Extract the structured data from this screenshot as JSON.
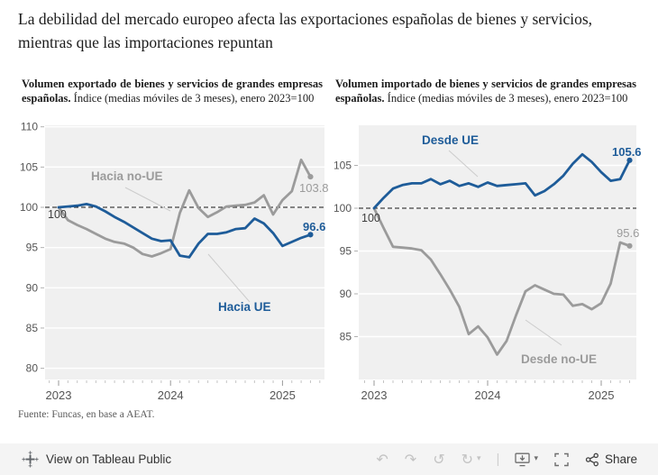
{
  "title": "La debilidad del mercado europeo afecta las exportaciones españolas de bienes y servicios, mientras que las importaciones repuntan",
  "source": "Fuente: Funcas, en base a AEAT.",
  "panels": [
    {
      "heading_bold": "Volumen exportado de bienes y servicios de grandes empresas españolas.",
      "heading_rest": " Índice (medias móviles de 3 meses), enero 2023=100"
    },
    {
      "heading_bold": "Volumen importado de bienes y servicios de grandes empresas españolas.",
      "heading_rest": " Índice (medias móviles de 3 meses), enero 2023=100"
    }
  ],
  "colors": {
    "blue": "#1e5c99",
    "gray": "#9b9b9b",
    "plot_bg": "#f0f0f0",
    "grid": "#ffffff",
    "ref_line": "#111111",
    "leader": "#cccccc",
    "axis_text": "#555555"
  },
  "chart_data": [
    {
      "type": "line",
      "title": "Volumen exportado de bienes y servicios de grandes empresas españolas",
      "subtitle": "Índice (medias móviles de 3 meses), enero 2023=100",
      "x": [
        "2023-01",
        "2023-02",
        "2023-03",
        "2023-04",
        "2023-05",
        "2023-06",
        "2023-07",
        "2023-08",
        "2023-09",
        "2023-10",
        "2023-11",
        "2023-12",
        "2024-01",
        "2024-02",
        "2024-03",
        "2024-04",
        "2024-05",
        "2024-06",
        "2024-07",
        "2024-08",
        "2024-09",
        "2024-10",
        "2024-11",
        "2024-12",
        "2025-01",
        "2025-02",
        "2025-03",
        "2025-04"
      ],
      "series": [
        {
          "name": "Hacia UE",
          "color": "#1e5c99",
          "end_label": "96.6",
          "values": [
            100,
            100.1,
            100.2,
            100.4,
            100.1,
            99.5,
            98.8,
            98.2,
            97.5,
            96.8,
            96.1,
            95.8,
            95.9,
            94.0,
            93.8,
            95.5,
            96.7,
            96.7,
            96.9,
            97.3,
            97.4,
            98.6,
            98.0,
            96.8,
            95.2,
            95.7,
            96.2,
            96.6
          ]
        },
        {
          "name": "Hacia no-UE",
          "color": "#9b9b9b",
          "end_label": "103.8",
          "values": [
            100,
            98.4,
            97.8,
            97.3,
            96.7,
            96.1,
            95.7,
            95.5,
            95.0,
            94.2,
            93.9,
            94.3,
            94.8,
            99.3,
            102.1,
            99.9,
            98.8,
            99.4,
            100.1,
            100.2,
            100.3,
            100.6,
            101.5,
            99.1,
            100.9,
            102.0,
            105.9,
            103.8
          ]
        }
      ],
      "start_label": "100",
      "refline": 100,
      "ylim": [
        80,
        110
      ],
      "yticks": [
        80,
        85,
        90,
        95,
        100,
        105,
        110
      ],
      "xticks": [
        "2023",
        "2024",
        "2025"
      ],
      "grid": true,
      "legend_position": "annotated-inline"
    },
    {
      "type": "line",
      "title": "Volumen importado de bienes y servicios de grandes empresas españolas",
      "subtitle": "Índice (medias móviles de 3 meses), enero 2023=100",
      "x": [
        "2023-01",
        "2023-02",
        "2023-03",
        "2023-04",
        "2023-05",
        "2023-06",
        "2023-07",
        "2023-08",
        "2023-09",
        "2023-10",
        "2023-11",
        "2023-12",
        "2024-01",
        "2024-02",
        "2024-03",
        "2024-04",
        "2024-05",
        "2024-06",
        "2024-07",
        "2024-08",
        "2024-09",
        "2024-10",
        "2024-11",
        "2024-12",
        "2025-01",
        "2025-02",
        "2025-03",
        "2025-04"
      ],
      "series": [
        {
          "name": "Desde UE",
          "color": "#1e5c99",
          "end_label": "105.6",
          "values": [
            100,
            101.2,
            102.3,
            102.7,
            102.9,
            102.9,
            103.4,
            102.8,
            103.2,
            102.6,
            102.9,
            102.5,
            103.0,
            102.6,
            102.7,
            102.8,
            102.9,
            101.5,
            102.0,
            102.8,
            103.8,
            105.2,
            106.3,
            105.4,
            104.2,
            103.2,
            103.4,
            105.6
          ]
        },
        {
          "name": "Desde no-UE",
          "color": "#9b9b9b",
          "end_label": "95.6",
          "values": [
            100,
            97.7,
            95.5,
            95.4,
            95.3,
            95.1,
            94.0,
            92.3,
            90.5,
            88.5,
            85.3,
            86.2,
            84.9,
            82.9,
            84.5,
            87.5,
            90.3,
            91.0,
            90.5,
            90.0,
            89.9,
            88.6,
            88.8,
            88.2,
            88.9,
            91.2,
            96.0,
            95.6
          ]
        }
      ],
      "start_label": "100",
      "refline": 100,
      "ylim": [
        80,
        110
      ],
      "yticks": [
        85,
        90,
        95,
        100,
        105
      ],
      "xticks": [
        "2023",
        "2024",
        "2025"
      ],
      "grid": true,
      "legend_position": "annotated-inline"
    }
  ],
  "toolbar": {
    "view_label": "View on Tableau Public",
    "share_label": "Share",
    "icons": {
      "undo": "↶",
      "redo": "↷",
      "revert": "↺",
      "refresh": "↻",
      "caret": "▾",
      "divider": "|"
    }
  }
}
